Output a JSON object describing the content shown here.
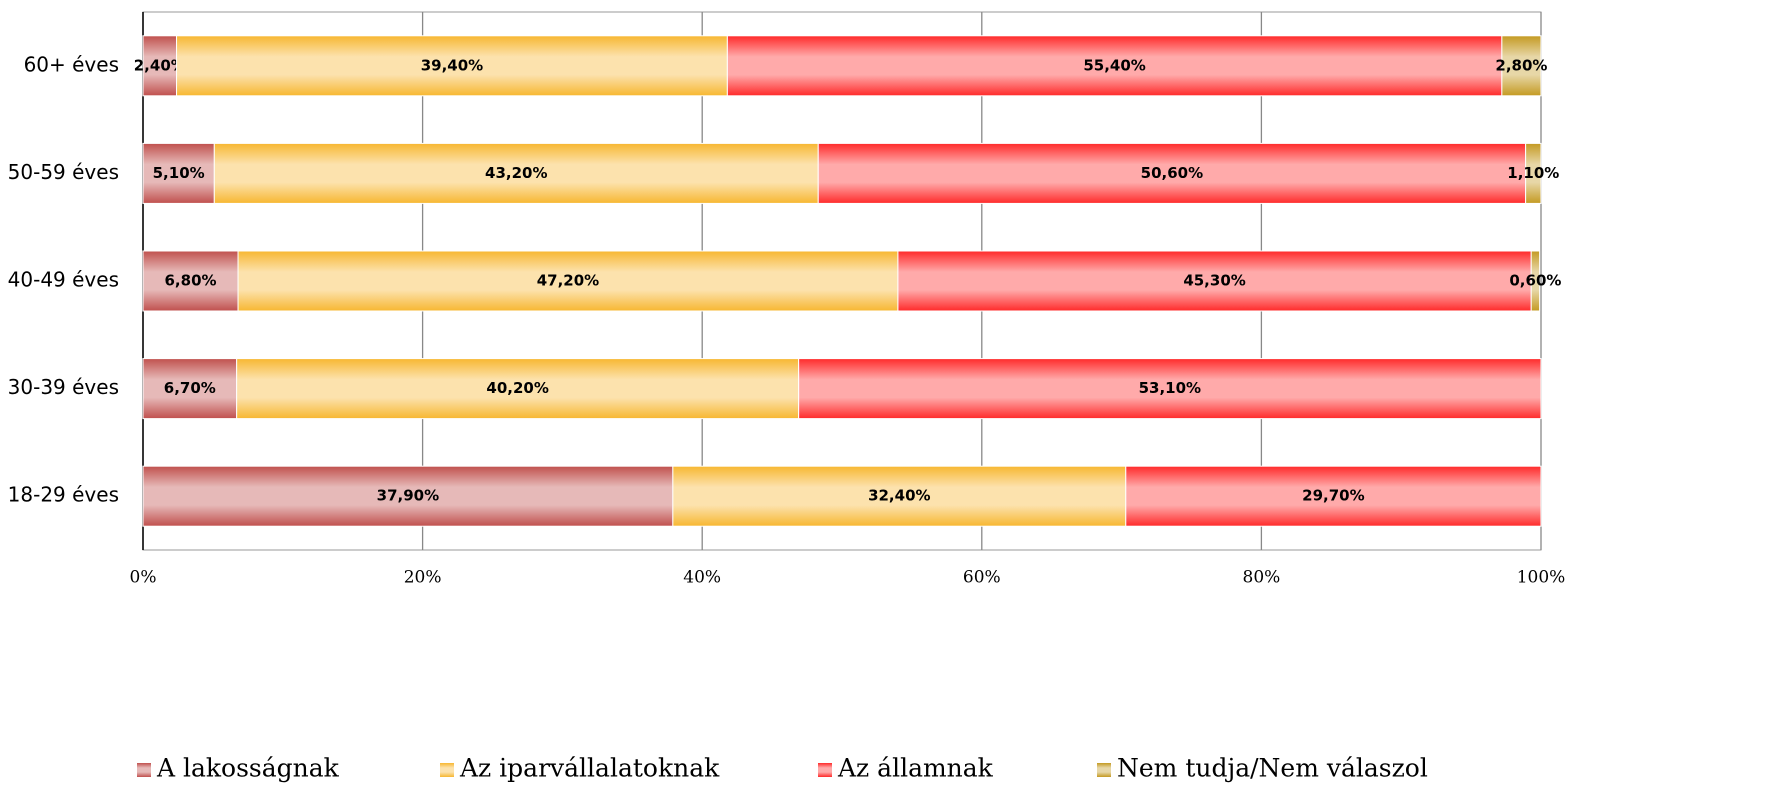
{
  "chart_data": {
    "type": "stacked-bar-horizontal",
    "categories": [
      "60+ éves",
      "50-59 éves",
      "40-49 éves",
      "30-39 éves",
      "18-29 éves"
    ],
    "series": [
      {
        "name": "A lakosságnak",
        "color": "#c0504d",
        "values": [
          2.4,
          5.1,
          6.8,
          6.7,
          37.9
        ],
        "value_labels": [
          "2,40%",
          "5,10%",
          "6,80%",
          "6,70%",
          "37,90%"
        ]
      },
      {
        "name": "Az iparvállalatoknak",
        "color": "#f7b731",
        "values": [
          39.4,
          43.2,
          47.2,
          40.2,
          32.4
        ],
        "value_labels": [
          "39,40%",
          "43,20%",
          "47,20%",
          "40,20%",
          "32,40%"
        ]
      },
      {
        "name": "Az államnak",
        "color": "#ff2a2a",
        "values": [
          55.4,
          50.6,
          45.3,
          53.1,
          29.7
        ],
        "value_labels": [
          "55,40%",
          "50,60%",
          "45,30%",
          "53,10%",
          "29,70%"
        ]
      },
      {
        "name": "Nem tudja/Nem válaszol",
        "color": "#c49a22",
        "values": [
          2.8,
          1.1,
          0.6,
          null,
          null
        ],
        "value_labels": [
          "2,80%",
          "1,10%",
          "0,60%",
          null,
          null
        ]
      }
    ],
    "xlim": [
      0,
      100
    ],
    "xticks": [
      {
        "value": 0,
        "label": "0%"
      },
      {
        "value": 20,
        "label": "20%"
      },
      {
        "value": 40,
        "label": "40%"
      },
      {
        "value": 60,
        "label": "60%"
      },
      {
        "value": 80,
        "label": "80%"
      },
      {
        "value": 100,
        "label": "100%"
      }
    ],
    "grid": true,
    "legend": "bottom"
  }
}
